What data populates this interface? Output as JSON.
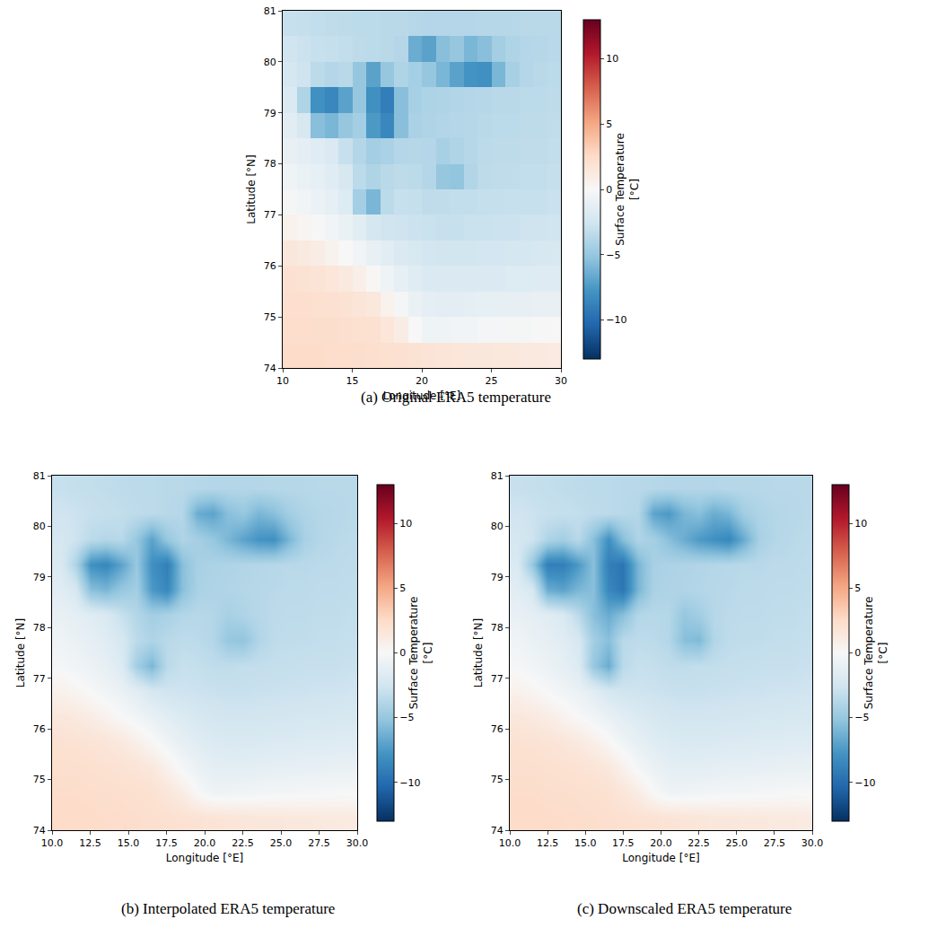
{
  "chart_data": [
    {
      "type": "heatmap",
      "title": "(a) Original ERA5 temperature",
      "x_label": "Longitude [°E]",
      "y_label": "Latitude [°N]",
      "xlim": [
        10,
        30
      ],
      "ylim": [
        74,
        81
      ],
      "xticks": [
        10,
        15,
        20,
        25,
        30
      ],
      "yticks": [
        74,
        75,
        76,
        77,
        78,
        79,
        80,
        81
      ],
      "x": [
        10.5,
        11.5,
        12.5,
        13.5,
        14.5,
        15.5,
        16.5,
        17.5,
        18.5,
        19.5,
        20.5,
        21.5,
        22.5,
        23.5,
        24.5,
        25.5,
        26.5,
        27.5,
        28.5,
        29.5
      ],
      "y": [
        74.25,
        74.75,
        75.25,
        75.75,
        76.25,
        76.75,
        77.25,
        77.75,
        78.25,
        78.75,
        79.25,
        79.75,
        80.25,
        80.75
      ],
      "z": [
        [
          2.5,
          2.5,
          2.5,
          2.4,
          2.4,
          2.3,
          2.2,
          2.1,
          2.0,
          1.9,
          1.8,
          1.7,
          1.6,
          1.5,
          1.5,
          1.4,
          1.4,
          1.3,
          1.3,
          1.2
        ],
        [
          2.4,
          2.4,
          2.3,
          2.3,
          2.2,
          2.1,
          2.0,
          1.6,
          1.0,
          0.0,
          -0.6,
          -0.6,
          -0.5,
          -0.4,
          -0.3,
          -0.3,
          -0.2,
          -0.2,
          -0.1,
          -0.1
        ],
        [
          2.2,
          2.2,
          2.1,
          2.0,
          1.9,
          1.7,
          1.4,
          0.6,
          -0.3,
          -0.9,
          -1.3,
          -1.4,
          -1.4,
          -1.3,
          -1.2,
          -1.2,
          -1.1,
          -1.1,
          -1.0,
          -1.0
        ],
        [
          2.0,
          1.9,
          1.8,
          1.6,
          1.3,
          0.8,
          0.1,
          -0.6,
          -1.2,
          -1.6,
          -1.9,
          -2.0,
          -2.0,
          -2.0,
          -1.9,
          -1.9,
          -1.8,
          -1.8,
          -1.7,
          -1.7
        ],
        [
          1.5,
          1.3,
          1.0,
          0.5,
          0.0,
          -0.5,
          -1.0,
          -1.5,
          -1.9,
          -2.2,
          -2.4,
          -2.5,
          -2.5,
          -2.5,
          -2.4,
          -2.4,
          -2.3,
          -2.3,
          -2.2,
          -2.2
        ],
        [
          0.6,
          0.3,
          -0.1,
          -0.5,
          -0.9,
          -1.5,
          -2.3,
          -2.6,
          -2.7,
          -2.8,
          -2.9,
          -3.0,
          -3.0,
          -2.9,
          -2.9,
          -2.8,
          -2.8,
          -2.7,
          -2.7,
          -2.6
        ],
        [
          -0.2,
          -0.5,
          -0.8,
          -1.2,
          -1.8,
          -4.5,
          -6.0,
          -3.5,
          -3.0,
          -3.1,
          -3.3,
          -3.3,
          -3.2,
          -3.2,
          -3.1,
          -3.1,
          -3.0,
          -3.0,
          -3.0,
          -2.9
        ],
        [
          -0.6,
          -0.9,
          -1.2,
          -1.6,
          -2.2,
          -3.5,
          -4.0,
          -3.6,
          -3.4,
          -3.5,
          -3.8,
          -5.0,
          -5.2,
          -3.9,
          -3.4,
          -3.3,
          -3.3,
          -3.2,
          -3.2,
          -3.1
        ],
        [
          -1.0,
          -1.3,
          -1.6,
          -2.0,
          -3.0,
          -3.8,
          -4.5,
          -4.2,
          -3.8,
          -3.7,
          -3.8,
          -4.3,
          -4.0,
          -3.7,
          -3.5,
          -3.4,
          -3.4,
          -3.3,
          -3.3,
          -3.2
        ],
        [
          -1.5,
          -2.2,
          -5.5,
          -6.0,
          -5.0,
          -4.5,
          -7.5,
          -8.5,
          -5.5,
          -4.2,
          -4.0,
          -3.9,
          -3.8,
          -3.7,
          -3.6,
          -3.5,
          -3.5,
          -3.4,
          -3.4,
          -3.3
        ],
        [
          -2.0,
          -4.0,
          -8.0,
          -8.5,
          -7.0,
          -5.0,
          -8.0,
          -9.0,
          -5.5,
          -4.3,
          -4.1,
          -4.0,
          -3.9,
          -3.8,
          -3.7,
          -3.6,
          -3.6,
          -3.5,
          -3.5,
          -3.4
        ],
        [
          -2.3,
          -2.7,
          -3.5,
          -3.8,
          -3.6,
          -5.0,
          -7.0,
          -5.0,
          -4.0,
          -4.4,
          -5.0,
          -6.0,
          -7.0,
          -7.8,
          -8.0,
          -6.0,
          -4.3,
          -3.8,
          -3.6,
          -3.5
        ],
        [
          -2.6,
          -2.8,
          -3.0,
          -3.1,
          -3.2,
          -3.4,
          -3.5,
          -3.6,
          -3.8,
          -6.5,
          -7.0,
          -5.5,
          -5.0,
          -6.0,
          -5.5,
          -4.5,
          -4.0,
          -3.8,
          -3.7,
          -3.6
        ],
        [
          -3.0,
          -3.1,
          -3.2,
          -3.3,
          -3.4,
          -3.5,
          -3.5,
          -3.6,
          -3.6,
          -3.7,
          -3.8,
          -3.8,
          -3.8,
          -3.8,
          -3.7,
          -3.7,
          -3.7,
          -3.6,
          -3.6,
          -3.6
        ]
      ],
      "colorbar": {
        "title": "Surface Temperature [°C]",
        "range": [
          -13,
          13
        ],
        "ticks": [
          -10,
          -5,
          0,
          5,
          10
        ]
      }
    },
    {
      "type": "heatmap",
      "title": "(b) Interpolated ERA5 temperature",
      "x_label": "Longitude [°E]",
      "y_label": "Latitude [°N]",
      "xlim": [
        10,
        30
      ],
      "ylim": [
        74,
        81
      ],
      "xticks": [
        {
          "value": 10,
          "label": "10.0"
        },
        {
          "value": 12.5,
          "label": "12.5"
        },
        {
          "value": 15,
          "label": "15.0"
        },
        {
          "value": 17.5,
          "label": "17.5"
        },
        {
          "value": 20,
          "label": "20.0"
        },
        {
          "value": 22.5,
          "label": "22.5"
        },
        {
          "value": 25,
          "label": "25.0"
        },
        {
          "value": 27.5,
          "label": "27.5"
        },
        {
          "value": 30,
          "label": "30.0"
        }
      ],
      "yticks": [
        74,
        75,
        76,
        77,
        78,
        79,
        80,
        81
      ],
      "x": [
        10.5,
        11.5,
        12.5,
        13.5,
        14.5,
        15.5,
        16.5,
        17.5,
        18.5,
        19.5,
        20.5,
        21.5,
        22.5,
        23.5,
        24.5,
        25.5,
        26.5,
        27.5,
        28.5,
        29.5
      ],
      "y": [
        74.25,
        74.75,
        75.25,
        75.75,
        76.25,
        76.75,
        77.25,
        77.75,
        78.25,
        78.75,
        79.25,
        79.75,
        80.25,
        80.75
      ],
      "z": [
        [
          2.5,
          2.5,
          2.5,
          2.4,
          2.4,
          2.3,
          2.2,
          2.1,
          2.0,
          1.9,
          1.8,
          1.7,
          1.6,
          1.5,
          1.5,
          1.4,
          1.4,
          1.3,
          1.3,
          1.2
        ],
        [
          2.4,
          2.4,
          2.3,
          2.3,
          2.2,
          2.1,
          2.0,
          1.6,
          1.0,
          0.0,
          -0.6,
          -0.6,
          -0.5,
          -0.4,
          -0.3,
          -0.3,
          -0.2,
          -0.2,
          -0.1,
          -0.1
        ],
        [
          2.2,
          2.2,
          2.1,
          2.0,
          1.9,
          1.7,
          1.4,
          0.6,
          -0.3,
          -0.9,
          -1.3,
          -1.4,
          -1.4,
          -1.3,
          -1.2,
          -1.2,
          -1.1,
          -1.1,
          -1.0,
          -1.0
        ],
        [
          2.0,
          1.9,
          1.8,
          1.6,
          1.3,
          0.8,
          0.1,
          -0.6,
          -1.2,
          -1.6,
          -1.9,
          -2.0,
          -2.0,
          -2.0,
          -1.9,
          -1.9,
          -1.8,
          -1.8,
          -1.7,
          -1.7
        ],
        [
          1.5,
          1.3,
          1.0,
          0.5,
          0.0,
          -0.5,
          -1.0,
          -1.5,
          -1.9,
          -2.2,
          -2.4,
          -2.5,
          -2.5,
          -2.5,
          -2.4,
          -2.4,
          -2.3,
          -2.3,
          -2.2,
          -2.2
        ],
        [
          0.6,
          0.3,
          -0.1,
          -0.5,
          -0.9,
          -1.5,
          -2.3,
          -2.6,
          -2.7,
          -2.8,
          -2.9,
          -3.0,
          -3.0,
          -2.9,
          -2.9,
          -2.8,
          -2.8,
          -2.7,
          -2.7,
          -2.6
        ],
        [
          -0.2,
          -0.5,
          -0.8,
          -1.2,
          -1.8,
          -4.5,
          -6.0,
          -3.5,
          -3.0,
          -3.1,
          -3.3,
          -3.3,
          -3.2,
          -3.2,
          -3.1,
          -3.1,
          -3.0,
          -3.0,
          -3.0,
          -2.9
        ],
        [
          -0.6,
          -0.9,
          -1.2,
          -1.6,
          -2.2,
          -3.5,
          -4.0,
          -3.6,
          -3.4,
          -3.5,
          -3.8,
          -5.0,
          -5.2,
          -3.9,
          -3.4,
          -3.3,
          -3.3,
          -3.2,
          -3.2,
          -3.1
        ],
        [
          -1.0,
          -1.3,
          -1.6,
          -2.0,
          -3.0,
          -3.8,
          -4.5,
          -4.2,
          -3.8,
          -3.7,
          -3.8,
          -4.3,
          -4.0,
          -3.7,
          -3.5,
          -3.4,
          -3.4,
          -3.3,
          -3.3,
          -3.2
        ],
        [
          -1.5,
          -2.2,
          -5.5,
          -6.0,
          -5.0,
          -4.5,
          -7.5,
          -8.5,
          -5.5,
          -4.2,
          -4.0,
          -3.9,
          -3.8,
          -3.7,
          -3.6,
          -3.5,
          -3.5,
          -3.4,
          -3.4,
          -3.3
        ],
        [
          -2.0,
          -4.0,
          -8.0,
          -8.5,
          -7.0,
          -5.0,
          -8.0,
          -9.0,
          -5.5,
          -4.3,
          -4.1,
          -4.0,
          -3.9,
          -3.8,
          -3.7,
          -3.6,
          -3.6,
          -3.5,
          -3.5,
          -3.4
        ],
        [
          -2.3,
          -2.7,
          -3.5,
          -3.8,
          -3.6,
          -5.0,
          -7.0,
          -5.0,
          -4.0,
          -4.4,
          -5.0,
          -6.0,
          -7.0,
          -7.8,
          -8.0,
          -6.0,
          -4.3,
          -3.8,
          -3.6,
          -3.5
        ],
        [
          -2.6,
          -2.8,
          -3.0,
          -3.1,
          -3.2,
          -3.4,
          -3.5,
          -3.6,
          -3.8,
          -6.5,
          -7.0,
          -5.5,
          -5.0,
          -6.0,
          -5.5,
          -4.5,
          -4.0,
          -3.8,
          -3.7,
          -3.6
        ],
        [
          -3.0,
          -3.1,
          -3.2,
          -3.3,
          -3.4,
          -3.5,
          -3.5,
          -3.6,
          -3.6,
          -3.7,
          -3.8,
          -3.8,
          -3.8,
          -3.8,
          -3.7,
          -3.7,
          -3.7,
          -3.6,
          -3.6,
          -3.6
        ]
      ],
      "colorbar": {
        "title": "Surface Temperature [°C]",
        "range": [
          -13,
          13
        ],
        "ticks": [
          -10,
          -5,
          0,
          5,
          10
        ]
      }
    },
    {
      "type": "heatmap",
      "title": "(c) Downscaled ERA5 temperature",
      "x_label": "Longitude [°E]",
      "y_label": "Latitude [°N]",
      "xlim": [
        10,
        30
      ],
      "ylim": [
        74,
        81
      ],
      "xticks": [
        {
          "value": 10,
          "label": "10.0"
        },
        {
          "value": 12.5,
          "label": "12.5"
        },
        {
          "value": 15,
          "label": "15.0"
        },
        {
          "value": 17.5,
          "label": "17.5"
        },
        {
          "value": 20,
          "label": "20.0"
        },
        {
          "value": 22.5,
          "label": "22.5"
        },
        {
          "value": 25,
          "label": "25.0"
        },
        {
          "value": 27.5,
          "label": "27.5"
        },
        {
          "value": 30,
          "label": "30.0"
        }
      ],
      "yticks": [
        74,
        75,
        76,
        77,
        78,
        79,
        80,
        81
      ],
      "x": [
        10.5,
        11.5,
        12.5,
        13.5,
        14.5,
        15.5,
        16.5,
        17.5,
        18.5,
        19.5,
        20.5,
        21.5,
        22.5,
        23.5,
        24.5,
        25.5,
        26.5,
        27.5,
        28.5,
        29.5
      ],
      "y": [
        74.25,
        74.75,
        75.25,
        75.75,
        76.25,
        76.75,
        77.25,
        77.75,
        78.25,
        78.75,
        79.25,
        79.75,
        80.25,
        80.75
      ],
      "z": [
        [
          2.5,
          2.5,
          2.5,
          2.4,
          2.4,
          2.3,
          2.2,
          2.1,
          2.0,
          1.9,
          1.8,
          1.7,
          1.6,
          1.5,
          1.5,
          1.4,
          1.4,
          1.3,
          1.3,
          1.2
        ],
        [
          2.4,
          2.4,
          2.3,
          2.3,
          2.2,
          2.1,
          2.0,
          1.6,
          1.0,
          0.0,
          -0.6,
          -0.6,
          -0.5,
          -0.4,
          -0.3,
          -0.3,
          -0.2,
          -0.2,
          -0.1,
          -0.1
        ],
        [
          2.2,
          2.2,
          2.1,
          2.0,
          1.9,
          1.7,
          1.4,
          0.6,
          -0.3,
          -0.9,
          -1.3,
          -1.4,
          -1.4,
          -1.3,
          -1.2,
          -1.2,
          -1.1,
          -1.1,
          -1.0,
          -1.0
        ],
        [
          2.0,
          1.9,
          1.8,
          1.6,
          1.3,
          0.8,
          0.1,
          -0.6,
          -1.2,
          -1.6,
          -1.9,
          -2.0,
          -2.0,
          -2.0,
          -1.9,
          -1.9,
          -1.8,
          -1.8,
          -1.7,
          -1.7
        ],
        [
          1.5,
          1.3,
          1.0,
          0.5,
          0.0,
          -0.5,
          -1.0,
          -1.5,
          -1.9,
          -2.2,
          -2.4,
          -2.5,
          -2.5,
          -2.5,
          -2.4,
          -2.4,
          -2.3,
          -2.3,
          -2.2,
          -2.2
        ],
        [
          0.6,
          0.3,
          -0.1,
          -0.5,
          -0.9,
          -1.5,
          -2.3,
          -2.6,
          -2.7,
          -2.8,
          -2.9,
          -3.0,
          -3.0,
          -2.9,
          -2.9,
          -2.8,
          -2.8,
          -2.7,
          -2.7,
          -2.6
        ],
        [
          -0.2,
          -0.5,
          -0.8,
          -1.2,
          -1.8,
          -5.0,
          -6.5,
          -3.5,
          -3.0,
          -3.1,
          -3.3,
          -3.3,
          -3.2,
          -3.2,
          -3.1,
          -3.1,
          -3.0,
          -3.0,
          -3.0,
          -2.9
        ],
        [
          -0.6,
          -0.9,
          -1.2,
          -1.6,
          -2.2,
          -4.5,
          -5.5,
          -3.6,
          -3.4,
          -3.5,
          -3.8,
          -5.5,
          -5.8,
          -3.9,
          -3.4,
          -3.3,
          -3.3,
          -3.2,
          -3.2,
          -3.1
        ],
        [
          -1.0,
          -1.3,
          -1.6,
          -2.0,
          -3.5,
          -5.5,
          -6.5,
          -5.5,
          -3.8,
          -3.7,
          -3.8,
          -5.0,
          -4.5,
          -3.7,
          -3.5,
          -3.4,
          -3.4,
          -3.3,
          -3.3,
          -3.2
        ],
        [
          -1.5,
          -2.2,
          -6.5,
          -7.0,
          -6.0,
          -5.5,
          -8.5,
          -9.5,
          -6.0,
          -4.2,
          -4.0,
          -3.9,
          -3.8,
          -3.7,
          -3.6,
          -3.5,
          -3.5,
          -3.4,
          -3.4,
          -3.3
        ],
        [
          -2.0,
          -5.0,
          -9.0,
          -9.0,
          -7.5,
          -5.5,
          -9.0,
          -9.5,
          -6.0,
          -4.3,
          -4.1,
          -4.0,
          -3.9,
          -3.8,
          -3.7,
          -3.6,
          -3.6,
          -3.5,
          -3.5,
          -3.4
        ],
        [
          -2.3,
          -2.7,
          -4.0,
          -4.5,
          -3.6,
          -5.5,
          -8.0,
          -5.5,
          -4.0,
          -4.4,
          -5.5,
          -6.5,
          -7.5,
          -8.0,
          -8.5,
          -6.5,
          -4.3,
          -3.8,
          -3.6,
          -3.5
        ],
        [
          -2.6,
          -2.8,
          -3.0,
          -3.1,
          -3.2,
          -3.4,
          -3.5,
          -3.6,
          -3.8,
          -7.0,
          -7.5,
          -6.0,
          -5.5,
          -6.5,
          -6.0,
          -4.5,
          -4.0,
          -3.8,
          -3.7,
          -3.6
        ],
        [
          -3.0,
          -3.1,
          -3.2,
          -3.3,
          -3.4,
          -3.5,
          -3.5,
          -3.6,
          -3.6,
          -3.7,
          -3.8,
          -3.8,
          -3.8,
          -3.8,
          -3.7,
          -3.7,
          -3.7,
          -3.6,
          -3.6,
          -3.6
        ]
      ],
      "colorbar": {
        "title": "Surface Temperature [°C]",
        "range": [
          -13,
          13
        ],
        "ticks": [
          -10,
          -5,
          0,
          5,
          10
        ]
      }
    }
  ]
}
